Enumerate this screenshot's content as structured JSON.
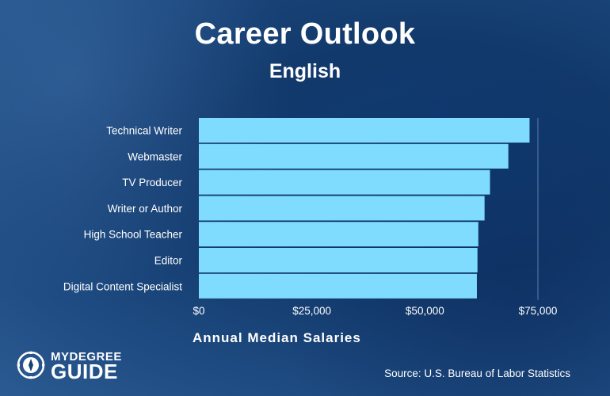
{
  "header": {
    "title": "Career Outlook",
    "subtitle": "English"
  },
  "source_text": "Source: U.S. Bureau of Labor Statistics",
  "logo": {
    "line1": "MYDEGREE",
    "line2": "GUIDE"
  },
  "colors": {
    "bar": "#7fdcff",
    "background": "#15406f",
    "text": "#ffffff",
    "gridline": "#5e7fa6"
  },
  "chart_data": {
    "type": "bar",
    "orientation": "horizontal",
    "title": "Career Outlook",
    "subtitle": "English",
    "xlabel": "Annual Median Salaries",
    "ylabel": "",
    "categories": [
      "Technical Writer",
      "Webmaster",
      "TV Producer",
      "Writer or Author",
      "High School Teacher",
      "Editor",
      "Digital Content Specialist"
    ],
    "values": [
      73150,
      68460,
      64400,
      63200,
      61820,
      61630,
      61500
    ],
    "xlim": [
      0,
      75000
    ],
    "xticks": [
      0,
      25000,
      50000,
      75000
    ],
    "xtick_labels": [
      "$0",
      "$25,000",
      "$50,000",
      "$75,000"
    ],
    "grid": false
  }
}
